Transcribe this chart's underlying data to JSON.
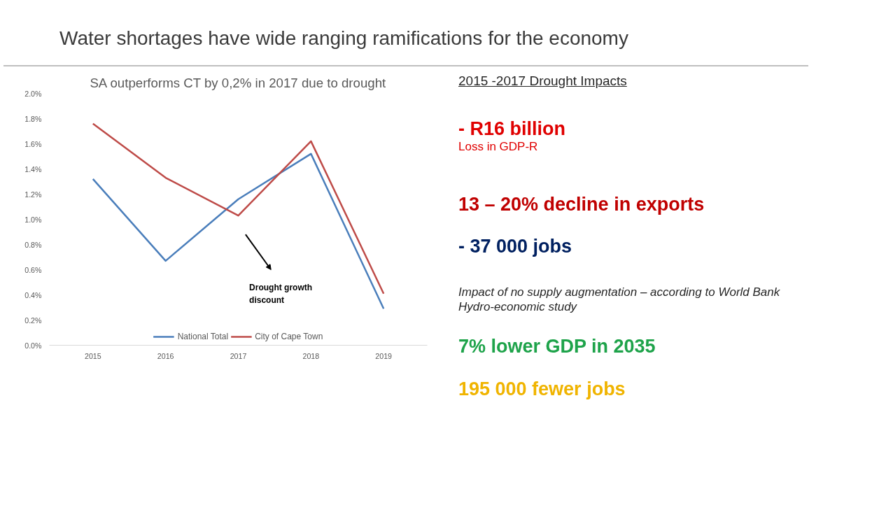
{
  "chart_data": {
    "type": "line",
    "title": "Water shortages have wide ranging ramifications for the economy",
    "subtitle": "SA outperforms CT by 0,2% in 2017 due to drought",
    "categories": [
      "2015",
      "2016",
      "2017",
      "2018",
      "2019"
    ],
    "series": [
      {
        "name": "National Total",
        "color": "#4a7ebb",
        "values": [
          1.32,
          0.67,
          1.16,
          1.52,
          0.29
        ]
      },
      {
        "name": "City of Cape Town",
        "color": "#be4b48",
        "values": [
          1.76,
          1.33,
          1.03,
          1.62,
          0.41
        ]
      }
    ],
    "ylim": [
      0,
      2.0
    ],
    "yticks": [
      {
        "value": 0,
        "label": "0.0%"
      },
      {
        "value": 0.2,
        "label": "0.2%"
      },
      {
        "value": 0.4,
        "label": "0.4%"
      },
      {
        "value": 0.6,
        "label": "0.6%"
      },
      {
        "value": 0.8,
        "label": "0.8%"
      },
      {
        "value": 1.0,
        "label": "1.0%"
      },
      {
        "value": 1.2,
        "label": "1.2%"
      },
      {
        "value": 1.4,
        "label": "1.4%"
      },
      {
        "value": 1.6,
        "label": "1.6%"
      },
      {
        "value": 1.8,
        "label": "1.8%"
      },
      {
        "value": 2.0,
        "label": "2.0%"
      }
    ],
    "grid": false,
    "legend": "bottom",
    "marker": "none",
    "line_style": "solid",
    "annotations": [
      "Drought growth discount",
      "2015 -2017 Drought Impacts",
      "- R16 billion",
      "Loss in GDP-R",
      "13 – 20% decline in exports",
      "- 37 000 jobs",
      "Impact of no supply augmentation – according to World Bank Hydro-economic study",
      "7% lower GDP in 2035",
      "195 000 fewer jobs"
    ]
  }
}
